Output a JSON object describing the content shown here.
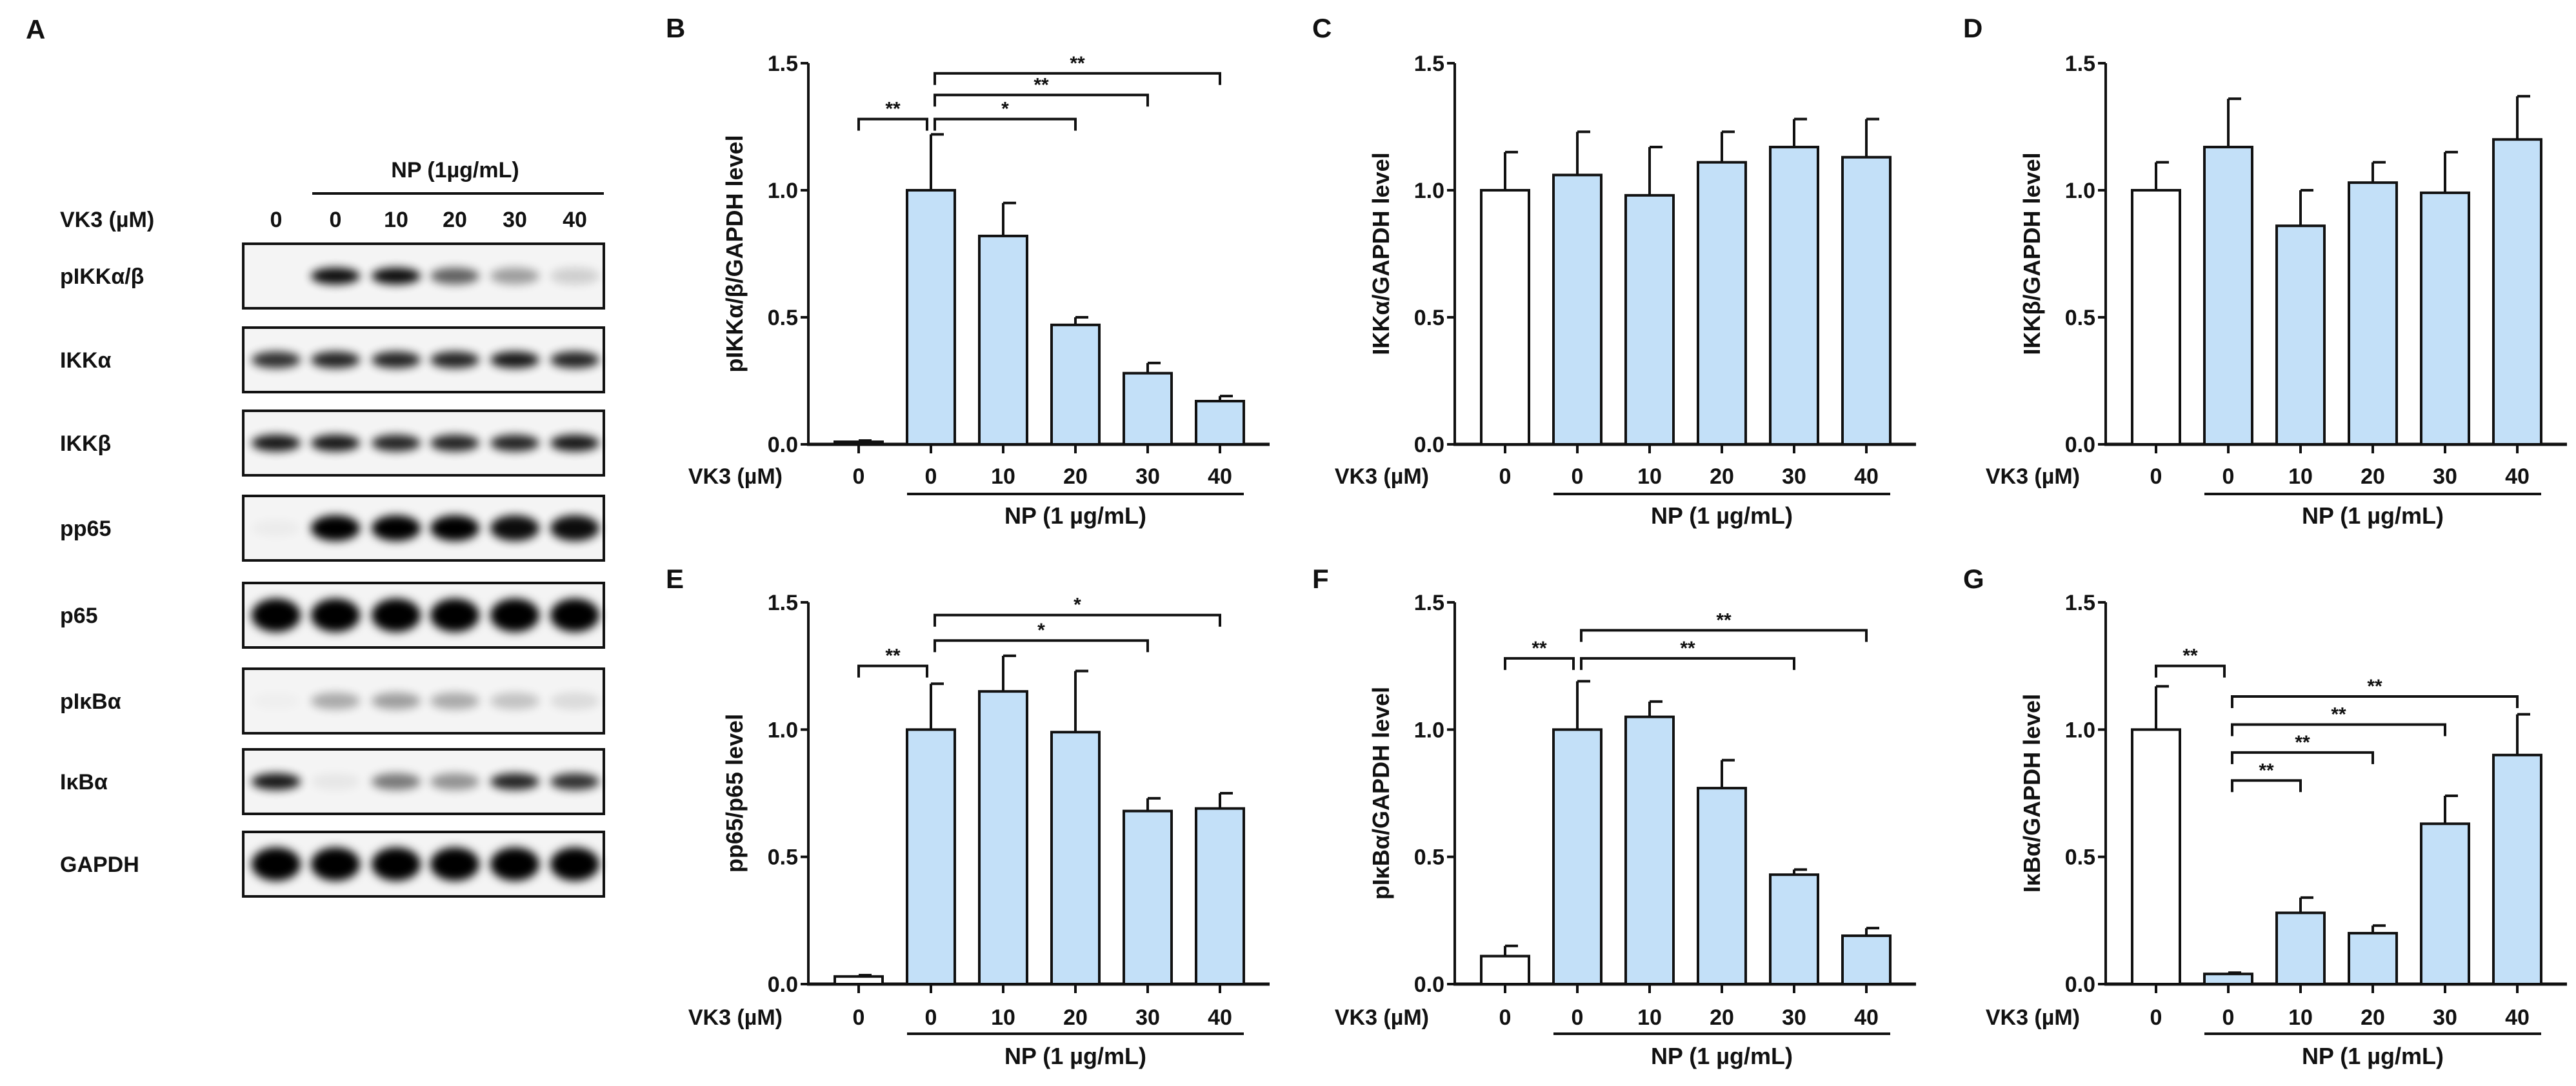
{
  "blot": {
    "panel_letter": "A",
    "treatment_label": "NP (1µg/mL)",
    "dose_label": "VK3 (µM)",
    "lanes": [
      "0",
      "0",
      "10",
      "20",
      "30",
      "40"
    ],
    "np_lanes_from": 1,
    "rows": [
      {
        "label": "pIKKα/β",
        "band_intensity": [
          0,
          0.95,
          0.95,
          0.6,
          0.35,
          0.15
        ]
      },
      {
        "label": "IKKα",
        "band_intensity": [
          0.8,
          0.85,
          0.85,
          0.85,
          0.9,
          0.85
        ]
      },
      {
        "label": "IKKβ",
        "band_intensity": [
          0.9,
          0.9,
          0.85,
          0.85,
          0.85,
          0.9
        ]
      },
      {
        "label": "pp65",
        "band_intensity": [
          0.03,
          1,
          1,
          1,
          0.95,
          0.95
        ]
      },
      {
        "label": "p65",
        "band_intensity": [
          1,
          1,
          1,
          1,
          1,
          1
        ]
      },
      {
        "label": "pIκBα",
        "band_intensity": [
          0.02,
          0.3,
          0.35,
          0.3,
          0.2,
          0.1
        ]
      },
      {
        "label": "IκBα",
        "band_intensity": [
          0.9,
          0.05,
          0.5,
          0.4,
          0.85,
          0.8
        ]
      },
      {
        "label": "GAPDH",
        "band_intensity": [
          1,
          1,
          1,
          1,
          1,
          1
        ]
      }
    ]
  },
  "colors": {
    "bar_fill": "#c3e0f8",
    "control_fill": "#ffffff",
    "stroke": "#111111"
  },
  "chart_data": [
    {
      "panel": "B",
      "type": "bar",
      "ylabel": "pIKKα/β/GAPDH level",
      "ylim": [
        0,
        1.5
      ],
      "yticks": [
        "0.0",
        "0.5",
        "1.0",
        "1.5"
      ],
      "xlabel_row": "VK3 (µM)",
      "group_label": "NP (1 µg/mL)",
      "categories": [
        "0",
        "0",
        "10",
        "20",
        "30",
        "40"
      ],
      "values": [
        0.01,
        1.0,
        0.82,
        0.47,
        0.28,
        0.17
      ],
      "errors": [
        0.005,
        0.22,
        0.13,
        0.03,
        0.04,
        0.02
      ],
      "significance": [
        {
          "from": 0,
          "to": 1,
          "level": 1.28,
          "label": "**"
        },
        {
          "from": 1,
          "to": 3,
          "level": 1.28,
          "label": "*"
        },
        {
          "from": 1,
          "to": 4,
          "level": 1.375,
          "label": "**"
        },
        {
          "from": 1,
          "to": 5,
          "level": 1.46,
          "label": "**"
        }
      ]
    },
    {
      "panel": "C",
      "type": "bar",
      "ylabel": "IKKα/GAPDH level",
      "ylim": [
        0,
        1.5
      ],
      "yticks": [
        "0.0",
        "0.5",
        "1.0",
        "1.5"
      ],
      "xlabel_row": "VK3 (µM)",
      "group_label": "NP (1 µg/mL)",
      "categories": [
        "0",
        "0",
        "10",
        "20",
        "30",
        "40"
      ],
      "values": [
        1.0,
        1.06,
        0.98,
        1.11,
        1.17,
        1.13
      ],
      "errors": [
        0.15,
        0.17,
        0.19,
        0.12,
        0.11,
        0.15
      ],
      "significance": []
    },
    {
      "panel": "D",
      "type": "bar",
      "ylabel": "IKKβ/GAPDH level",
      "ylim": [
        0,
        1.5
      ],
      "yticks": [
        "0.0",
        "0.5",
        "1.0",
        "1.5"
      ],
      "xlabel_row": "VK3 (µM)",
      "group_label": "NP (1 µg/mL)",
      "categories": [
        "0",
        "0",
        "10",
        "20",
        "30",
        "40"
      ],
      "values": [
        1.0,
        1.17,
        0.86,
        1.03,
        0.99,
        1.2
      ],
      "errors": [
        0.11,
        0.19,
        0.14,
        0.08,
        0.16,
        0.17
      ],
      "significance": []
    },
    {
      "panel": "E",
      "type": "bar",
      "ylabel": "pp65/p65 level",
      "ylim": [
        0,
        1.5
      ],
      "yticks": [
        "0.0",
        "0.5",
        "1.0",
        "1.5"
      ],
      "xlabel_row": "VK3 (µM)",
      "group_label": "NP (1 µg/mL)",
      "categories": [
        "0",
        "0",
        "10",
        "20",
        "30",
        "40"
      ],
      "values": [
        0.03,
        1.0,
        1.15,
        0.99,
        0.68,
        0.69
      ],
      "errors": [
        0.005,
        0.18,
        0.14,
        0.24,
        0.05,
        0.06
      ],
      "significance": [
        {
          "from": 0,
          "to": 1,
          "level": 1.25,
          "label": "**"
        },
        {
          "from": 1,
          "to": 4,
          "level": 1.35,
          "label": "*"
        },
        {
          "from": 1,
          "to": 5,
          "level": 1.45,
          "label": "*"
        }
      ]
    },
    {
      "panel": "F",
      "type": "bar",
      "ylabel": "pIκBα/GAPDH level",
      "ylim": [
        0,
        1.5
      ],
      "yticks": [
        "0.0",
        "0.5",
        "1.0",
        "1.5"
      ],
      "xlabel_row": "VK3 (µM)",
      "group_label": "NP (1 µg/mL)",
      "categories": [
        "0",
        "0",
        "10",
        "20",
        "30",
        "40"
      ],
      "values": [
        0.11,
        1.0,
        1.05,
        0.77,
        0.43,
        0.19
      ],
      "errors": [
        0.04,
        0.19,
        0.06,
        0.11,
        0.02,
        0.03
      ],
      "significance": [
        {
          "from": 0,
          "to": 1,
          "level": 1.28,
          "label": "**"
        },
        {
          "from": 1,
          "to": 4,
          "level": 1.28,
          "label": "**"
        },
        {
          "from": 1,
          "to": 5,
          "level": 1.39,
          "label": "**"
        }
      ]
    },
    {
      "panel": "G",
      "type": "bar",
      "ylabel": "IκBα/GAPDH level",
      "ylim": [
        0,
        1.5
      ],
      "yticks": [
        "0.0",
        "0.5",
        "1.0",
        "1.5"
      ],
      "xlabel_row": "VK3 (µM)",
      "group_label": "NP (1 µg/mL)",
      "categories": [
        "0",
        "0",
        "10",
        "20",
        "30",
        "40"
      ],
      "values": [
        1.0,
        0.04,
        0.28,
        0.2,
        0.63,
        0.9
      ],
      "errors": [
        0.17,
        0.005,
        0.06,
        0.03,
        0.11,
        0.16
      ],
      "significance": [
        {
          "from": 0,
          "to": 1,
          "level": 1.25,
          "label": "**"
        },
        {
          "from": 1,
          "to": 2,
          "level": 0.8,
          "label": "**"
        },
        {
          "from": 1,
          "to": 3,
          "level": 0.91,
          "label": "**"
        },
        {
          "from": 1,
          "to": 4,
          "level": 1.02,
          "label": "**"
        },
        {
          "from": 1,
          "to": 5,
          "level": 1.13,
          "label": "**"
        }
      ]
    }
  ]
}
